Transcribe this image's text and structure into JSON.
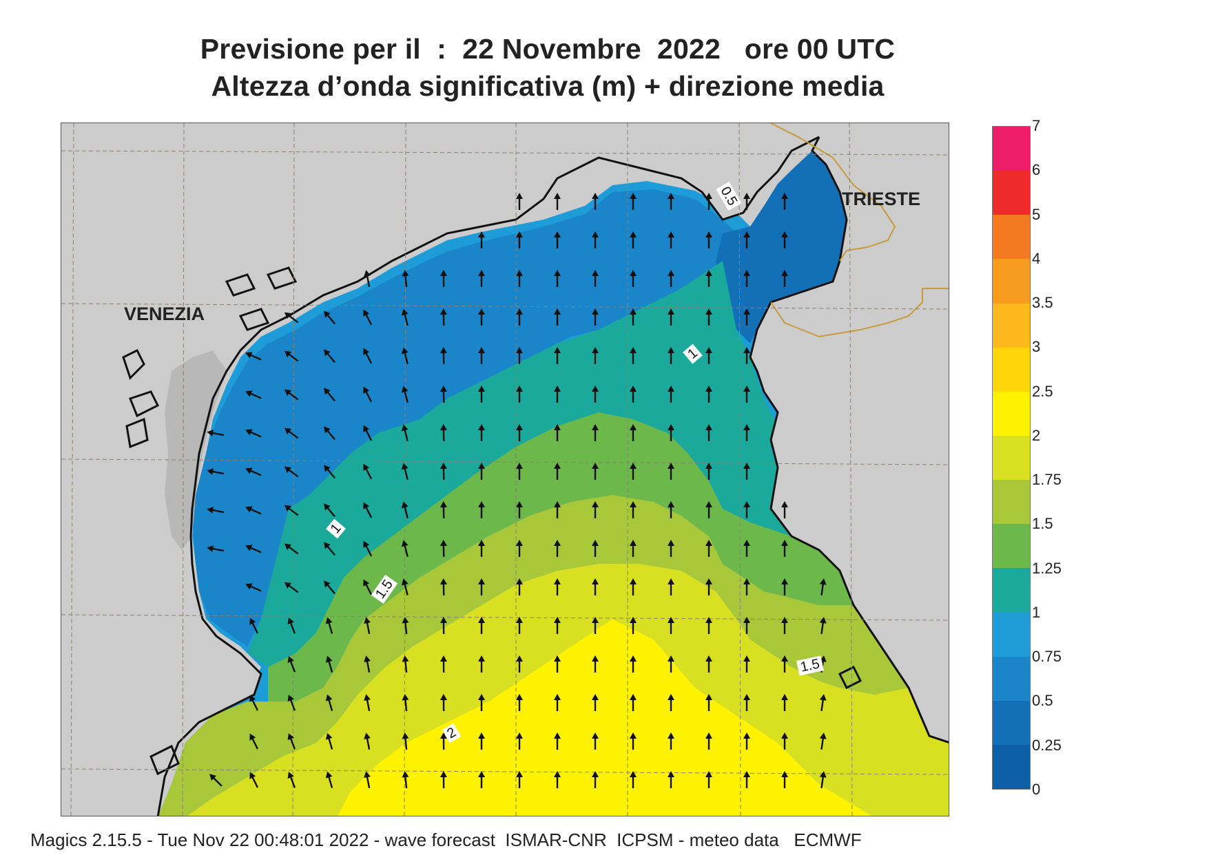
{
  "title": {
    "line1": "Previsione per il  :  22 Novembre  2022   ore 00 UTC",
    "line2": "Altezza d’onda significativa (m) + direzione media"
  },
  "map": {
    "cities": [
      {
        "id": "venezia",
        "label": "VENEZIA"
      },
      {
        "id": "trieste",
        "label": "TRIESTE"
      }
    ],
    "contour_labels": [
      {
        "id": "c-0-5",
        "label": "0.5"
      },
      {
        "id": "c-1-north",
        "label": "1"
      },
      {
        "id": "c-1-west",
        "label": "1"
      },
      {
        "id": "c-1-5-west",
        "label": "1.5"
      },
      {
        "id": "c-1-5-east",
        "label": "1.5"
      },
      {
        "id": "c-2",
        "label": "2"
      }
    ],
    "land_color": "#cccccc",
    "coast_color": "#111111",
    "border_color": "#c79a3a",
    "grid_color": "#8a8070",
    "arrow_color": "#111111"
  },
  "colorbar": {
    "levels": [
      "7",
      "6",
      "5",
      "4",
      "3.5",
      "3",
      "2.5",
      "2",
      "1.75",
      "1.5",
      "1.25",
      "1",
      "0.75",
      "0.5",
      "0.25",
      "0"
    ],
    "colors": [
      "#ee1d6a",
      "#ee2a2a",
      "#f37a21",
      "#f79c1f",
      "#fdb81c",
      "#ffd60a",
      "#fff200",
      "#d9e021",
      "#a8c83a",
      "#6cb84a",
      "#1aa99a",
      "#1e9cd8",
      "#1a86c9",
      "#1470b6",
      "#0c5ea6"
    ]
  },
  "footer": "Magics 2.15.5 - Tue Nov 22 00:48:01 2022 - wave forecast  ISMAR-CNR  ICPSM - meteo data   ECMWF"
}
